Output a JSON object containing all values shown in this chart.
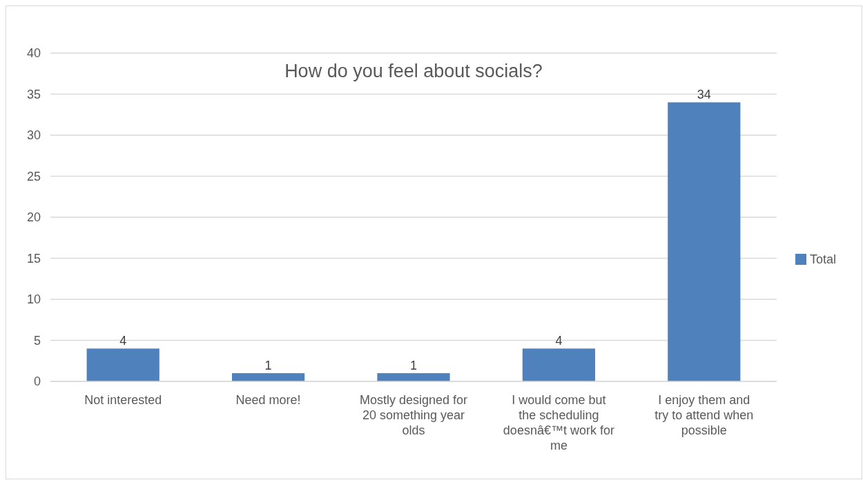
{
  "chart_data": {
    "type": "bar",
    "title": "How do you feel about socials?",
    "categories": [
      "Not interested",
      "Need more!",
      "Mostly designed for 20 something year olds",
      "I would come but the scheduling doesnâ€™t work for me",
      "I enjoy them and try to attend when possible"
    ],
    "series": [
      {
        "name": "Total",
        "color": "#4f81bd",
        "values": [
          4,
          1,
          1,
          4,
          34
        ]
      }
    ],
    "ylim": [
      0,
      40
    ],
    "yticks": [
      0,
      5,
      10,
      15,
      20,
      25,
      30,
      35,
      40
    ],
    "grid": "y",
    "legend": "right",
    "data_labels": true
  }
}
